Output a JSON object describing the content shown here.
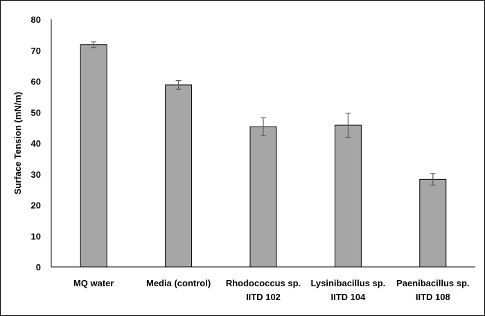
{
  "chart_data": {
    "type": "bar",
    "title": "",
    "xlabel": "",
    "ylabel": "Surface Tension (mN/m)",
    "ylim": [
      0,
      80
    ],
    "yticks": [
      "0",
      "10",
      "20",
      "30",
      "40",
      "50",
      "60",
      "70",
      "80"
    ],
    "grid": false,
    "legend": "none",
    "categories": [
      [
        "MQ water"
      ],
      [
        "Media (control)"
      ],
      [
        "Rhodococcus sp.",
        "IITD 102"
      ],
      [
        "Lysinibacillus sp.",
        "IITD 104"
      ],
      [
        "Paenibacillus sp.",
        "IITD 108"
      ]
    ],
    "values": [
      71.8,
      58.8,
      45.3,
      45.8,
      28.3
    ],
    "error": [
      0.9,
      1.4,
      2.9,
      3.9,
      1.9
    ],
    "bar_color": "#a6a6a6",
    "bar_edge_color": "#000000",
    "error_color": "#595959"
  }
}
